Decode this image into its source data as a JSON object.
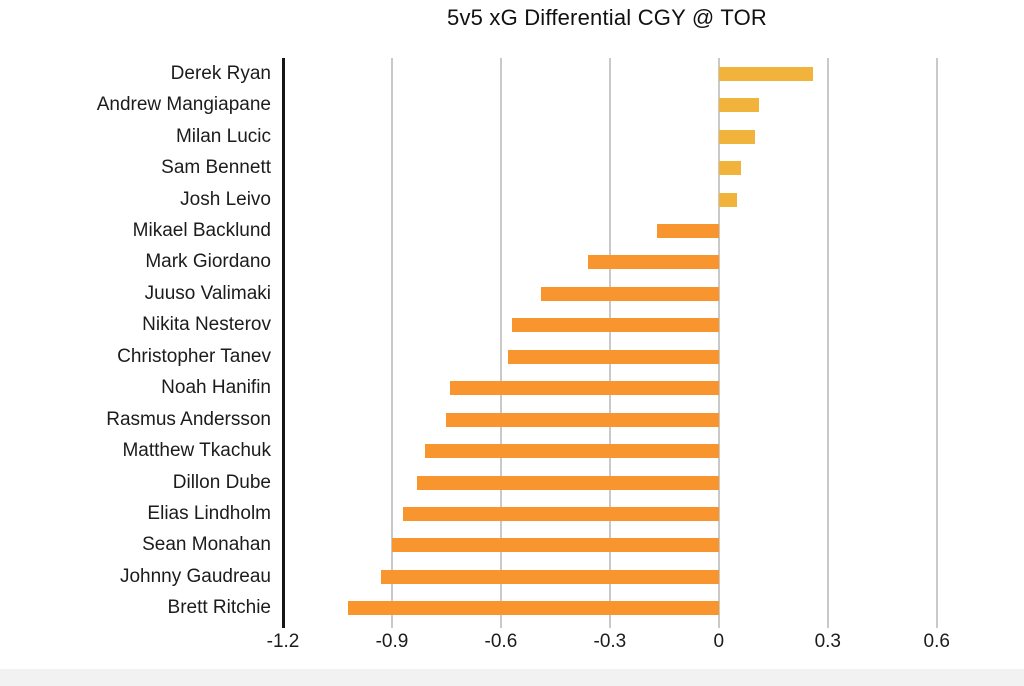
{
  "chart_data": {
    "type": "bar",
    "orientation": "horizontal",
    "title": "5v5 xG Differential CGY @ TOR",
    "xlabel": "",
    "ylabel": "",
    "categories": [
      "Derek Ryan",
      "Andrew Mangiapane",
      "Milan Lucic",
      "Sam Bennett",
      "Josh Leivo",
      "Mikael Backlund",
      "Mark Giordano",
      "Juuso Valimaki",
      "Nikita Nesterov",
      "Christopher Tanev",
      "Noah Hanifin",
      "Rasmus Andersson",
      "Matthew Tkachuk",
      "Dillon Dube",
      "Elias Lindholm",
      "Sean Monahan",
      "Johnny Gaudreau",
      "Brett Ritchie"
    ],
    "values": [
      0.26,
      0.11,
      0.1,
      0.06,
      0.05,
      -0.17,
      -0.36,
      -0.49,
      -0.57,
      -0.58,
      -0.74,
      -0.75,
      -0.81,
      -0.83,
      -0.87,
      -0.9,
      -0.93,
      -1.02
    ],
    "x_ticks": [
      -1.2,
      -0.9,
      -0.6,
      -0.3,
      0,
      0.3,
      0.6
    ],
    "x_tick_labels": [
      "-1.2",
      "-0.9",
      "-0.6",
      "-0.3",
      "0",
      "0.3",
      "0.6"
    ],
    "xlim": [
      -1.2,
      0.81
    ],
    "grid": true,
    "legend": "none",
    "colors": {
      "positive_bar": "#F2B33C",
      "negative_bar": "#F9952F",
      "gridline": "#C9C9C9",
      "axis_spine": "#161616",
      "text": "#1C1C1C",
      "footer_band": "#F2F2F2"
    }
  }
}
